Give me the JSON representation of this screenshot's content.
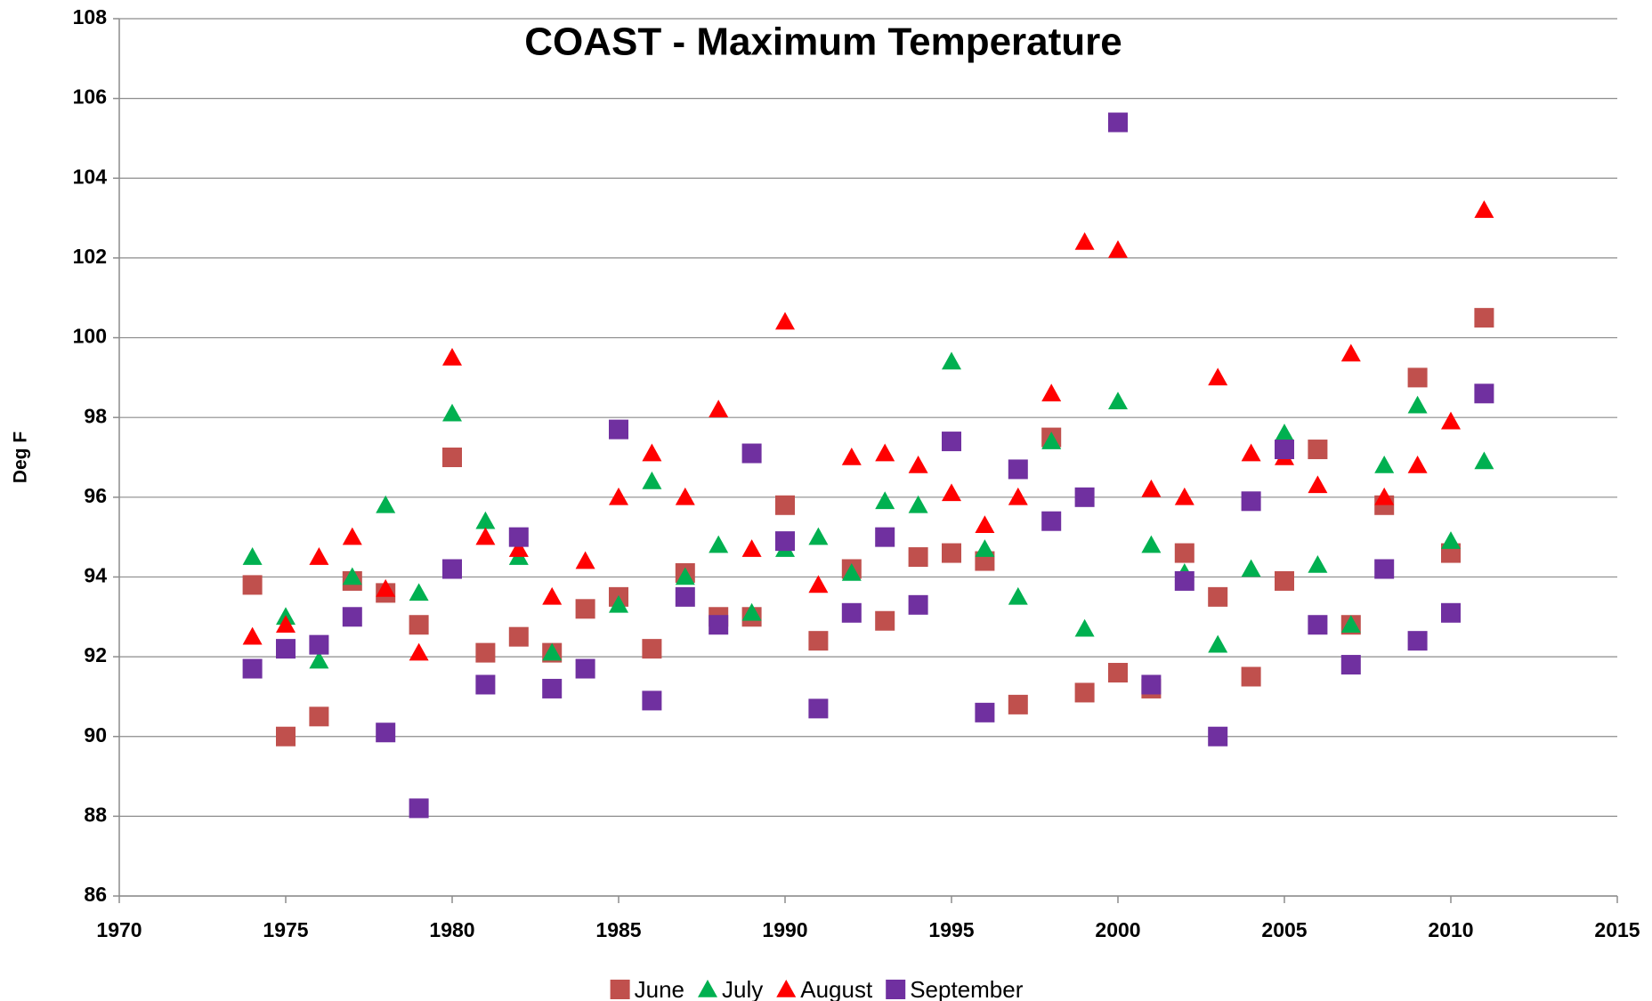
{
  "chart_data": {
    "type": "scatter",
    "title": "COAST - Maximum Temperature",
    "y_label": "Deg F",
    "x": [
      1974,
      1975,
      1976,
      1977,
      1978,
      1979,
      1980,
      1981,
      1982,
      1983,
      1984,
      1985,
      1986,
      1987,
      1988,
      1989,
      1990,
      1991,
      1992,
      1993,
      1994,
      1995,
      1996,
      1997,
      1998,
      1999,
      2000,
      2001,
      2002,
      2003,
      2004,
      2005,
      2006,
      2007,
      2008,
      2009,
      2010,
      2011
    ],
    "series": [
      {
        "name": "June",
        "color": "#c0504d",
        "marker": "square",
        "values": [
          93.8,
          90.0,
          90.5,
          93.9,
          93.6,
          92.8,
          97.0,
          92.1,
          92.5,
          92.1,
          93.2,
          93.5,
          92.2,
          94.1,
          93.0,
          93.0,
          95.8,
          92.4,
          94.2,
          92.9,
          94.5,
          94.6,
          94.4,
          90.8,
          97.5,
          91.1,
          91.6,
          91.2,
          94.6,
          93.5,
          91.5,
          93.9,
          97.2,
          92.8,
          95.8,
          99.0,
          94.6,
          100.5
        ]
      },
      {
        "name": "July",
        "color": "#00b050",
        "marker": "triangle",
        "values": [
          94.5,
          93.0,
          91.9,
          94.0,
          95.8,
          93.6,
          98.1,
          95.4,
          94.5,
          92.1,
          null,
          93.3,
          96.4,
          94.0,
          94.8,
          93.1,
          94.7,
          95.0,
          94.1,
          95.9,
          95.8,
          99.4,
          94.7,
          93.5,
          97.4,
          92.7,
          98.4,
          94.8,
          94.1,
          92.3,
          94.2,
          97.6,
          94.3,
          92.8,
          96.8,
          98.3,
          94.9,
          96.9
        ]
      },
      {
        "name": "August",
        "color": "#ff0000",
        "marker": "triangle",
        "values": [
          92.5,
          92.8,
          94.5,
          95.0,
          93.7,
          92.1,
          99.5,
          95.0,
          94.7,
          93.5,
          94.4,
          96.0,
          97.1,
          96.0,
          98.2,
          94.7,
          100.4,
          93.8,
          97.0,
          97.1,
          96.8,
          96.1,
          95.3,
          96.0,
          98.6,
          102.4,
          102.2,
          96.2,
          96.0,
          99.0,
          97.1,
          97.0,
          96.3,
          99.6,
          96.0,
          96.8,
          97.9,
          103.2
        ]
      },
      {
        "name": "September",
        "color": "#7030a0",
        "marker": "square",
        "values": [
          91.7,
          92.2,
          92.3,
          93.0,
          90.1,
          88.2,
          94.2,
          91.3,
          95.0,
          91.2,
          91.7,
          97.7,
          90.9,
          93.5,
          92.8,
          97.1,
          94.9,
          90.7,
          93.1,
          95.0,
          93.3,
          97.4,
          90.6,
          96.7,
          95.4,
          96.0,
          105.4,
          91.3,
          93.9,
          90.0,
          95.9,
          97.2,
          92.8,
          91.8,
          94.2,
          92.4,
          93.1,
          98.6
        ]
      }
    ],
    "xlim": [
      1970,
      2015
    ],
    "xticks": [
      1970,
      1975,
      1980,
      1985,
      1990,
      1995,
      2000,
      2005,
      2010,
      2015
    ],
    "ylim": [
      86,
      108
    ],
    "yticks": [
      86,
      88,
      90,
      92,
      94,
      96,
      98,
      100,
      102,
      104,
      106,
      108
    ],
    "grid": true,
    "legend": "bottom"
  }
}
